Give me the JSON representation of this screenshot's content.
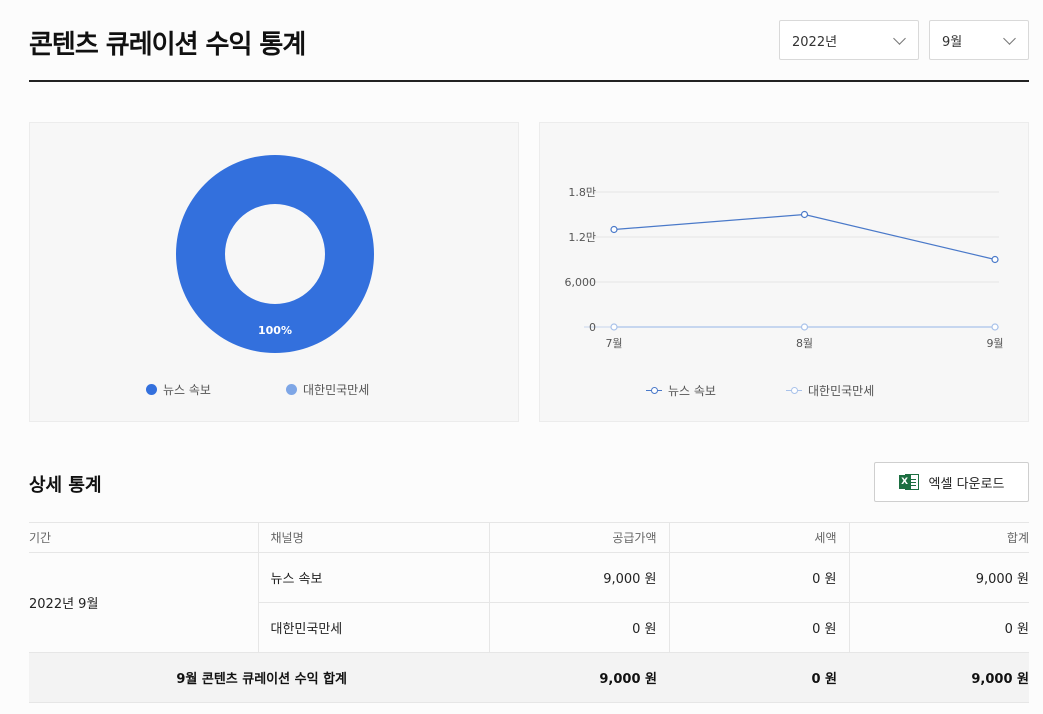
{
  "header": {
    "title": "콘텐츠 큐레이션 수익 통계",
    "year_select": "2022년",
    "month_select": "9월"
  },
  "donut": {
    "percent_label": "100%",
    "legend": [
      {
        "label": "뉴스 속보",
        "color": "#3370dd"
      },
      {
        "label": "대한민국만세",
        "color": "#7ea6e6"
      }
    ]
  },
  "chart_data": [
    {
      "type": "pie",
      "variant": "donut",
      "categories": [
        "뉴스 속보",
        "대한민국만세"
      ],
      "values": [
        9000,
        0
      ],
      "data_labels": [
        "100%"
      ],
      "legend": "bottom",
      "colors": [
        "#3370dd",
        "#7ea6e6"
      ]
    },
    {
      "type": "line",
      "categories": [
        "7월",
        "8월",
        "9월"
      ],
      "series": [
        {
          "name": "뉴스 속보",
          "values": [
            13000,
            15000,
            9000
          ],
          "color": "#4a79c9"
        },
        {
          "name": "대한민국만세",
          "values": [
            0,
            0,
            0
          ],
          "color": "#a9c2ea"
        }
      ],
      "yticks": [
        "0",
        "6,000",
        "1.2만",
        "1.8만"
      ],
      "ylim": [
        0,
        18000
      ],
      "grid": true,
      "legend": "bottom"
    }
  ],
  "section": {
    "title": "상세 통계",
    "excel_label": "엑셀 다운로드",
    "excel_icon": "excel-icon"
  },
  "table": {
    "headers": [
      "기간",
      "채널명",
      "공급가액",
      "세액",
      "합계"
    ],
    "period": "2022년 9월",
    "rows": [
      {
        "channel": "뉴스 속보",
        "supply": "9,000 원",
        "tax": "0 원",
        "total": "9,000 원"
      },
      {
        "channel": "대한민국만세",
        "supply": "0 원",
        "tax": "0 원",
        "total": "0 원"
      }
    ],
    "summary": {
      "label": "9월 콘텐츠 큐레이션 수익 합계",
      "supply": "9,000 원",
      "tax": "0 원",
      "total": "9,000 원"
    }
  }
}
